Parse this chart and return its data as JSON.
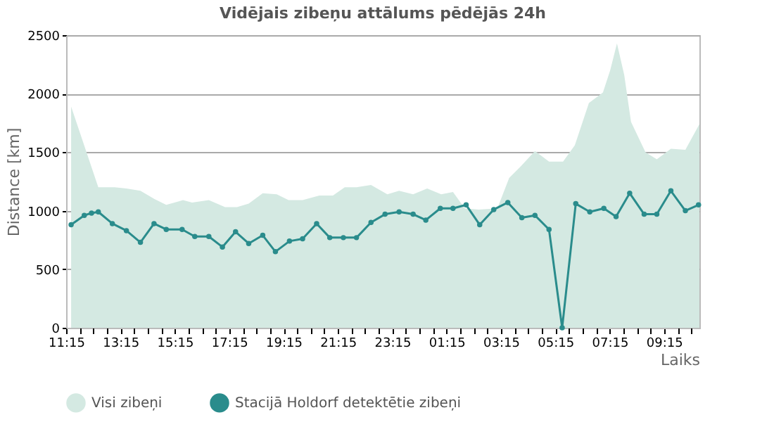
{
  "chart_data": {
    "type": "area",
    "title": "Vidējais zibeņu attālums pēdējās 24h",
    "xlabel": "Laiks",
    "ylabel": "Distance   [km]",
    "legend": "bottom",
    "grid": "y",
    "xlim": [
      "2000-01-01T11:15",
      "2000-01-02T10:33"
    ],
    "ylim": [
      0,
      2500
    ],
    "yticks": [
      0,
      500,
      1000,
      1500,
      2000,
      2500
    ],
    "xticks": [
      {
        "value": "2000-01-01T11:15",
        "label": "11:15"
      },
      {
        "value": "2000-01-01T11:45",
        "label": null
      },
      {
        "value": "2000-01-01T12:15",
        "label": null
      },
      {
        "value": "2000-01-01T12:45",
        "label": null
      },
      {
        "value": "2000-01-01T13:15",
        "label": "13:15"
      },
      {
        "value": "2000-01-01T13:45",
        "label": null
      },
      {
        "value": "2000-01-01T14:15",
        "label": null
      },
      {
        "value": "2000-01-01T14:45",
        "label": null
      },
      {
        "value": "2000-01-01T15:15",
        "label": "15:15"
      },
      {
        "value": "2000-01-01T15:45",
        "label": null
      },
      {
        "value": "2000-01-01T16:15",
        "label": null
      },
      {
        "value": "2000-01-01T16:45",
        "label": null
      },
      {
        "value": "2000-01-01T17:15",
        "label": "17:15"
      },
      {
        "value": "2000-01-01T17:45",
        "label": null
      },
      {
        "value": "2000-01-01T18:15",
        "label": null
      },
      {
        "value": "2000-01-01T18:45",
        "label": null
      },
      {
        "value": "2000-01-01T19:15",
        "label": "19:15"
      },
      {
        "value": "2000-01-01T19:45",
        "label": null
      },
      {
        "value": "2000-01-01T20:15",
        "label": null
      },
      {
        "value": "2000-01-01T20:45",
        "label": null
      },
      {
        "value": "2000-01-01T21:15",
        "label": "21:15"
      },
      {
        "value": "2000-01-01T21:45",
        "label": null
      },
      {
        "value": "2000-01-01T22:15",
        "label": null
      },
      {
        "value": "2000-01-01T22:45",
        "label": null
      },
      {
        "value": "2000-01-01T23:15",
        "label": "23:15"
      },
      {
        "value": "2000-01-01T23:45",
        "label": null
      },
      {
        "value": "2000-01-02T00:15",
        "label": null
      },
      {
        "value": "2000-01-02T00:45",
        "label": null
      },
      {
        "value": "2000-01-02T01:15",
        "label": "01:15"
      },
      {
        "value": "2000-01-02T01:45",
        "label": null
      },
      {
        "value": "2000-01-02T02:15",
        "label": null
      },
      {
        "value": "2000-01-02T02:45",
        "label": null
      },
      {
        "value": "2000-01-02T03:15",
        "label": "03:15"
      },
      {
        "value": "2000-01-02T03:45",
        "label": null
      },
      {
        "value": "2000-01-02T04:15",
        "label": null
      },
      {
        "value": "2000-01-02T04:45",
        "label": null
      },
      {
        "value": "2000-01-02T05:15",
        "label": "05:15"
      },
      {
        "value": "2000-01-02T05:45",
        "label": null
      },
      {
        "value": "2000-01-02T06:15",
        "label": null
      },
      {
        "value": "2000-01-02T06:45",
        "label": null
      },
      {
        "value": "2000-01-02T07:15",
        "label": "07:15"
      },
      {
        "value": "2000-01-02T07:45",
        "label": null
      },
      {
        "value": "2000-01-02T08:15",
        "label": null
      },
      {
        "value": "2000-01-02T08:45",
        "label": null
      },
      {
        "value": "2000-01-02T09:15",
        "label": "09:15"
      },
      {
        "value": "2000-01-02T09:45",
        "label": null
      },
      {
        "value": "2000-01-02T10:15",
        "label": null
      }
    ],
    "series": [
      {
        "name": "Visi zibeņi",
        "type": "area",
        "color": "#d4e9e2",
        "x": [
          "2000-01-01T11:26",
          "2000-01-01T12:26",
          "2000-01-01T13:02",
          "2000-01-01T13:28",
          "2000-01-01T13:59",
          "2000-01-01T14:30",
          "2000-01-01T14:56",
          "2000-01-01T15:33",
          "2000-01-01T15:53",
          "2000-01-01T16:30",
          "2000-01-01T17:06",
          "2000-01-01T17:32",
          "2000-01-01T17:58",
          "2000-01-01T18:29",
          "2000-01-01T19:00",
          "2000-01-01T19:26",
          "2000-01-01T19:57",
          "2000-01-01T20:34",
          "2000-01-01T21:04",
          "2000-01-01T21:30",
          "2000-01-01T21:56",
          "2000-01-01T22:28",
          "2000-01-01T23:04",
          "2000-01-01T23:30",
          "2000-01-02T00:01",
          "2000-01-02T00:32",
          "2000-01-02T01:03",
          "2000-01-02T01:29",
          "2000-01-02T01:55",
          "2000-01-02T02:26",
          "2000-01-02T03:07",
          "2000-01-02T03:33",
          "2000-01-02T03:59",
          "2000-01-02T04:30",
          "2000-01-02T05:01",
          "2000-01-02T05:32",
          "2000-01-02T05:58",
          "2000-01-02T06:29",
          "2000-01-02T07:00",
          "2000-01-02T07:16",
          "2000-01-02T07:31",
          "2000-01-02T07:47",
          "2000-01-02T08:02",
          "2000-01-02T08:34",
          "2000-01-02T08:59",
          "2000-01-02T09:30",
          "2000-01-02T10:02",
          "2000-01-02T10:33"
        ],
        "values": [
          1890,
          1200,
          1200,
          1190,
          1170,
          1100,
          1050,
          1090,
          1070,
          1090,
          1030,
          1030,
          1060,
          1150,
          1140,
          1090,
          1090,
          1130,
          1130,
          1200,
          1200,
          1220,
          1140,
          1170,
          1140,
          1190,
          1140,
          1160,
          1020,
          1010,
          1020,
          1280,
          1380,
          1510,
          1420,
          1420,
          1560,
          1920,
          2010,
          2200,
          2430,
          2160,
          1760,
          1500,
          1440,
          1530,
          1520,
          1740
        ]
      },
      {
        "name": "Stacijā Holdorf detektētie zibeņi",
        "type": "line",
        "marker": "circle",
        "color": "#2a8c8c",
        "x": [
          "2000-01-01T11:26",
          "2000-01-01T11:55",
          "2000-01-01T12:11",
          "2000-01-01T12:26",
          "2000-01-01T12:57",
          "2000-01-01T13:28",
          "2000-01-01T13:59",
          "2000-01-01T14:29",
          "2000-01-01T14:56",
          "2000-01-01T15:31",
          "2000-01-01T15:59",
          "2000-01-01T16:30",
          "2000-01-01T17:00",
          "2000-01-01T17:29",
          "2000-01-01T17:58",
          "2000-01-01T18:29",
          "2000-01-01T18:57",
          "2000-01-01T19:28",
          "2000-01-01T19:57",
          "2000-01-01T20:28",
          "2000-01-01T20:57",
          "2000-01-01T21:27",
          "2000-01-01T21:56",
          "2000-01-01T22:28",
          "2000-01-01T22:59",
          "2000-01-01T23:30",
          "2000-01-02T00:01",
          "2000-01-02T00:29",
          "2000-01-02T01:01",
          "2000-01-02T01:29",
          "2000-01-02T01:58",
          "2000-01-02T02:28",
          "2000-01-02T02:59",
          "2000-01-02T03:30",
          "2000-01-02T04:01",
          "2000-01-02T04:30",
          "2000-01-02T05:01",
          "2000-01-02T05:30",
          "2000-01-02T06:00",
          "2000-01-02T06:31",
          "2000-01-02T07:02",
          "2000-01-02T07:29",
          "2000-01-02T07:59",
          "2000-01-02T08:31",
          "2000-01-02T08:59",
          "2000-01-02T09:30",
          "2000-01-02T10:02",
          "2000-01-02T10:31"
        ],
        "values": [
          880,
          960,
          980,
          990,
          890,
          830,
          730,
          890,
          840,
          840,
          780,
          780,
          690,
          820,
          720,
          790,
          650,
          740,
          760,
          890,
          770,
          770,
          770,
          900,
          970,
          990,
          970,
          920,
          1020,
          1020,
          1050,
          880,
          1010,
          1070,
          940,
          960,
          840,
          0,
          1060,
          990,
          1020,
          950,
          1150,
          970,
          970,
          1170,
          1000,
          1050
        ]
      }
    ]
  }
}
